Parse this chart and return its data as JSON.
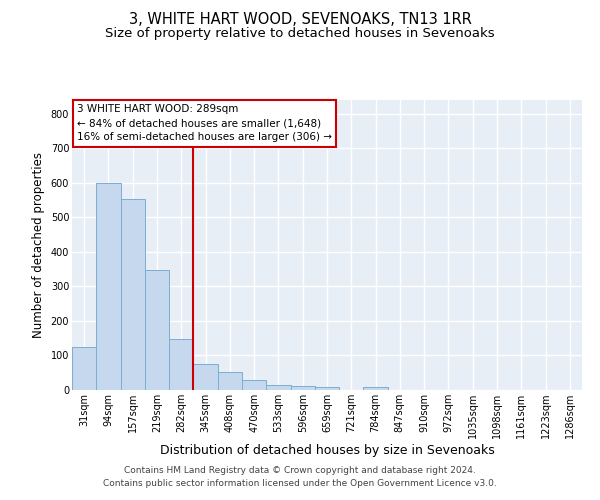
{
  "title": "3, WHITE HART WOOD, SEVENOAKS, TN13 1RR",
  "subtitle": "Size of property relative to detached houses in Sevenoaks",
  "xlabel": "Distribution of detached houses by size in Sevenoaks",
  "ylabel": "Number of detached properties",
  "footnote1": "Contains HM Land Registry data © Crown copyright and database right 2024.",
  "footnote2": "Contains public sector information licensed under the Open Government Licence v3.0.",
  "categories": [
    "31sqm",
    "94sqm",
    "157sqm",
    "219sqm",
    "282sqm",
    "345sqm",
    "408sqm",
    "470sqm",
    "533sqm",
    "596sqm",
    "659sqm",
    "721sqm",
    "784sqm",
    "847sqm",
    "910sqm",
    "972sqm",
    "1035sqm",
    "1098sqm",
    "1161sqm",
    "1223sqm",
    "1286sqm"
  ],
  "values": [
    125,
    600,
    553,
    347,
    148,
    75,
    53,
    30,
    14,
    13,
    10,
    0,
    8,
    0,
    0,
    0,
    0,
    0,
    0,
    0,
    0
  ],
  "bar_color": "#c5d8ed",
  "bar_edge_color": "#7aaed0",
  "vline_color": "#cc0000",
  "vline_position": 4.5,
  "annotation_line1": "3 WHITE HART WOOD: 289sqm",
  "annotation_line2": "← 84% of detached houses are smaller (1,648)",
  "annotation_line3": "16% of semi-detached houses are larger (306) →",
  "annotation_box_facecolor": "#ffffff",
  "annotation_box_edgecolor": "#cc0000",
  "ylim_min": 0,
  "ylim_max": 840,
  "yticks": [
    0,
    100,
    200,
    300,
    400,
    500,
    600,
    700,
    800
  ],
  "plot_bgcolor": "#e8eef6",
  "grid_color": "#ffffff",
  "title_fontsize": 10.5,
  "subtitle_fontsize": 9.5,
  "ylabel_fontsize": 8.5,
  "xlabel_fontsize": 9,
  "tick_fontsize": 7,
  "footnote_fontsize": 6.5,
  "annotation_fontsize": 7.5
}
